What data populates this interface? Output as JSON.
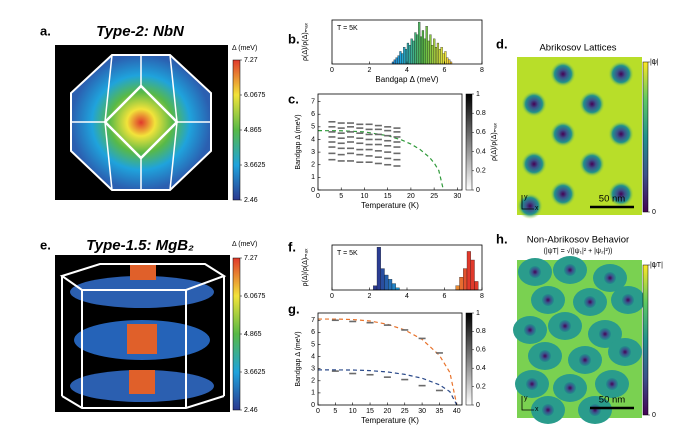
{
  "panels": {
    "a": {
      "label": "a.",
      "title": "Type-2: NbN",
      "colorbar": {
        "label": "Δ (meV)",
        "clim": [
          2.46,
          7.27
        ],
        "ticks": [
          7.27,
          6.0675,
          4.865,
          3.6625,
          2.46
        ],
        "colormap": [
          "#2b3990",
          "#1fa3dc",
          "#58b947",
          "#f2e33a",
          "#e0392b"
        ]
      }
    },
    "d": {
      "label": "d.",
      "title": "Abrikosov Lattices",
      "scale_bar": "50 nm",
      "axis_x": "x",
      "axis_y": "y",
      "colorbar": {
        "label": "|ψ|",
        "clim": [
          0,
          1
        ],
        "ticks": [
          1,
          0
        ],
        "colormap": [
          "#440154",
          "#3b528b",
          "#21918c",
          "#5ec962",
          "#fde725"
        ]
      }
    },
    "e": {
      "label": "e.",
      "title": "Type-1.5: MgB₂",
      "colorbar": {
        "label": "Δ (meV)",
        "clim": [
          2.46,
          7.27
        ],
        "ticks": [
          7.27,
          6.0675,
          4.865,
          3.6625,
          2.46
        ],
        "colormap": [
          "#2b3990",
          "#1fa3dc",
          "#58b947",
          "#f2e33a",
          "#e0392b"
        ]
      }
    },
    "h": {
      "label": "h.",
      "title": "Non-Abrikosov Behavior",
      "subtitle": "(|ψT| = √(|ψ₁|² + |ψ₂|²))",
      "scale_bar": "50 nm",
      "axis_x": "x",
      "axis_y": "y",
      "colorbar": {
        "label": "|ψT|",
        "clim": [
          0,
          1
        ],
        "ticks": [
          1,
          0
        ],
        "colormap": [
          "#440154",
          "#3b528b",
          "#21918c",
          "#5ec962",
          "#fde725"
        ]
      }
    }
  },
  "chart_data": [
    {
      "type": "histogram",
      "label": "b.",
      "annotation": "T = 5K",
      "x_label": "Bandgap Δ (meV)",
      "y_label": "ρ(Δ)/ρ(Δ)ₘₐₓ",
      "bins": [
        3.2,
        3.3,
        3.4,
        3.5,
        3.6,
        3.7,
        3.8,
        3.9,
        4.0,
        4.1,
        4.2,
        4.3,
        4.4,
        4.5,
        4.6,
        4.7,
        4.8,
        4.9,
        5.0,
        5.1,
        5.2,
        5.3,
        5.4,
        5.5,
        5.6,
        5.7,
        5.8,
        5.9,
        6.0,
        6.1,
        6.2,
        6.3,
        6.4
      ],
      "values": [
        0.05,
        0.1,
        0.15,
        0.2,
        0.3,
        0.25,
        0.4,
        0.35,
        0.5,
        0.45,
        0.6,
        0.55,
        0.75,
        0.7,
        1.0,
        0.65,
        0.8,
        0.6,
        0.9,
        0.55,
        0.7,
        0.45,
        0.6,
        0.4,
        0.5,
        0.35,
        0.4,
        0.25,
        0.3,
        0.15,
        0.1,
        0.05
      ],
      "xlim": [
        0,
        8
      ],
      "xticks": [
        0,
        2,
        4,
        6,
        8
      ],
      "ylim": [
        0,
        1.05
      ]
    },
    {
      "type": "scatter",
      "label": "c.",
      "x_label": "Temperature (K)",
      "y_label": "Bandgap Δ (meV)",
      "point_color": "#6a6a6a",
      "columns": [
        {
          "x": 3,
          "values": [
            2.4,
            2.9,
            3.4,
            3.8,
            4.2,
            4.6,
            5.0,
            5.4
          ]
        },
        {
          "x": 5,
          "values": [
            2.3,
            2.8,
            3.3,
            3.7,
            4.1,
            4.5,
            4.9,
            5.3
          ]
        },
        {
          "x": 7,
          "values": [
            2.3,
            2.9,
            3.3,
            3.8,
            4.2,
            4.6,
            5.0,
            5.3
          ]
        },
        {
          "x": 9,
          "values": [
            2.2,
            2.8,
            3.2,
            3.7,
            4.1,
            4.5,
            4.9,
            5.2
          ]
        },
        {
          "x": 11,
          "values": [
            2.2,
            2.7,
            3.2,
            3.6,
            4.0,
            4.4,
            4.8,
            5.2
          ]
        },
        {
          "x": 13,
          "values": [
            2.1,
            2.6,
            3.1,
            3.6,
            4.0,
            4.4,
            4.8,
            5.1
          ]
        },
        {
          "x": 15,
          "values": [
            2.0,
            2.5,
            3.0,
            3.5,
            3.9,
            4.3,
            4.7,
            5.0
          ]
        },
        {
          "x": 17,
          "values": [
            1.9,
            2.4,
            2.9,
            3.4,
            3.8,
            4.2,
            4.6,
            4.9
          ]
        }
      ],
      "fits": [
        {
          "color": "#2f9a3a",
          "x": [
            0,
            5,
            10,
            15,
            18,
            20,
            22,
            24,
            25,
            26,
            27
          ],
          "values": [
            4.7,
            4.69,
            4.6,
            4.3,
            3.96,
            3.64,
            3.2,
            2.58,
            2.14,
            1.55,
            0
          ]
        }
      ],
      "xlim": [
        0,
        31
      ],
      "xticks": [
        0,
        5,
        10,
        15,
        20,
        25,
        30
      ],
      "ylim": [
        0,
        7.6
      ],
      "yticks": [
        0,
        1,
        2,
        3,
        4,
        5,
        6,
        7
      ],
      "colorbar": {
        "label": "ρ(Δ)/ρ(Δ)ₘₐₓ",
        "clim": [
          0,
          1
        ],
        "ticks": [
          0,
          0.2,
          0.4,
          0.6,
          0.8,
          1
        ],
        "colormap": [
          "#ffffff",
          "#000000"
        ]
      }
    },
    {
      "type": "histogram",
      "label": "f.",
      "annotation": "T = 5K",
      "y_label": "ρ(Δ)/ρ(Δ)ₘₐₓ",
      "bins": [
        2.0,
        2.2,
        2.4,
        2.6,
        2.8,
        3.0,
        3.2,
        3.4,
        3.6,
        3.8,
        4.0,
        4.2,
        4.4,
        4.6,
        4.8,
        5.0,
        5.2,
        5.4,
        5.6,
        5.8,
        6.0,
        6.2,
        6.4,
        6.6,
        6.8,
        7.0,
        7.2,
        7.4,
        7.6,
        7.8,
        8.0
      ],
      "values": [
        0,
        0.1,
        1.0,
        0.5,
        0.35,
        0.25,
        0.15,
        0.05,
        0,
        0,
        0,
        0,
        0,
        0,
        0,
        0,
        0,
        0,
        0,
        0,
        0,
        0,
        0,
        0.1,
        0.3,
        0.5,
        0.9,
        0.7,
        0.2,
        0
      ],
      "xlim": [
        0,
        8
      ],
      "xticks": [
        0,
        2,
        4,
        6,
        8
      ],
      "ylim": [
        0,
        1.05
      ]
    },
    {
      "type": "scatter",
      "label": "g.",
      "x_label": "Temperature (K)",
      "y_label": "Bandgap Δ (meV)",
      "point_color": "#6a6a6a",
      "columns": [
        {
          "x": 5,
          "values": [
            7.0,
            2.8
          ]
        },
        {
          "x": 10,
          "values": [
            6.9,
            2.6
          ]
        },
        {
          "x": 15,
          "values": [
            6.8,
            2.5
          ]
        },
        {
          "x": 20,
          "values": [
            6.6,
            2.3
          ]
        },
        {
          "x": 25,
          "values": [
            6.2,
            2.1
          ]
        },
        {
          "x": 30,
          "values": [
            5.5,
            1.6
          ]
        },
        {
          "x": 35,
          "values": [
            4.3,
            1.2
          ]
        }
      ],
      "fits": [
        {
          "color": "#e8732c",
          "x": [
            0,
            5,
            10,
            15,
            20,
            25,
            30,
            35,
            38,
            40
          ],
          "values": [
            7.1,
            7.1,
            7.06,
            6.94,
            6.67,
            6.2,
            5.42,
            4.1,
            2.69,
            0
          ]
        },
        {
          "color": "#2b4a8a",
          "x": [
            0,
            5,
            10,
            15,
            20,
            25,
            30,
            35,
            38,
            40
          ],
          "values": [
            2.9,
            2.9,
            2.89,
            2.84,
            2.73,
            2.53,
            2.21,
            1.67,
            1.1,
            0
          ]
        }
      ],
      "xlim": [
        0,
        41.5
      ],
      "xticks": [
        0,
        5,
        10,
        15,
        20,
        25,
        30,
        35,
        40
      ],
      "ylim": [
        0,
        7.6
      ],
      "yticks": [
        0,
        1,
        2,
        3,
        4,
        5,
        6,
        7
      ],
      "colorbar": {
        "clim": [
          0,
          1
        ],
        "ticks": [
          0,
          0.2,
          0.4,
          0.6,
          0.8,
          1
        ],
        "colormap": [
          "#ffffff",
          "#000000"
        ]
      }
    }
  ]
}
